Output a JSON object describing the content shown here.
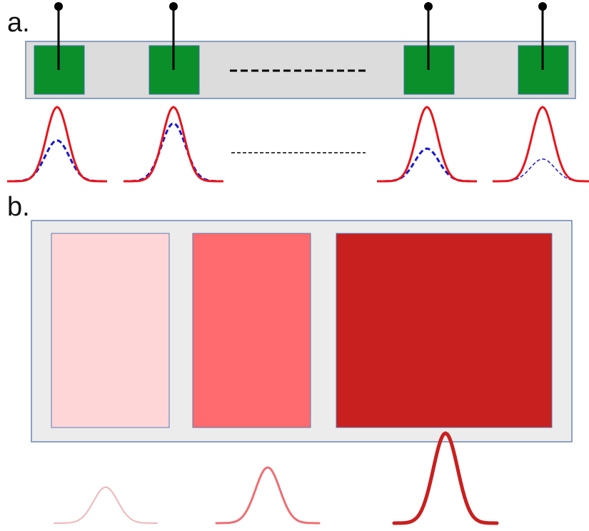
{
  "panel_a": {
    "label": "a.",
    "array_color": "#dcdcdc",
    "array_stroke": "#6a86b0",
    "element_color": "#0a8f2a",
    "element_count_shown": 4,
    "gap_marker": "dashed-ellipsis",
    "probe_color": "#000000",
    "curve_colors": {
      "solid": "#e8141b",
      "dashed": "#1818d0"
    },
    "curves": [
      {
        "solid_peak": 1.0,
        "dashed_peak": 0.55
      },
      {
        "solid_peak": 1.0,
        "dashed_peak": 0.78
      },
      {
        "solid_peak": 1.0,
        "dashed_peak": 0.44
      },
      {
        "solid_peak": 1.0,
        "dashed_peak": 0.3
      }
    ]
  },
  "panel_b": {
    "label": "b.",
    "container_color": "#ececec",
    "container_stroke": "#6a86b0",
    "blocks": [
      {
        "color": "#ffd6d8",
        "curve_color": "#f2b6b8",
        "curve_peak": 0.4
      },
      {
        "color": "#ff6b6e",
        "curve_color": "#ef6e72",
        "curve_peak": 0.62
      },
      {
        "color": "#c8201f",
        "curve_color": "#c8201f",
        "curve_peak": 1.0
      }
    ]
  }
}
